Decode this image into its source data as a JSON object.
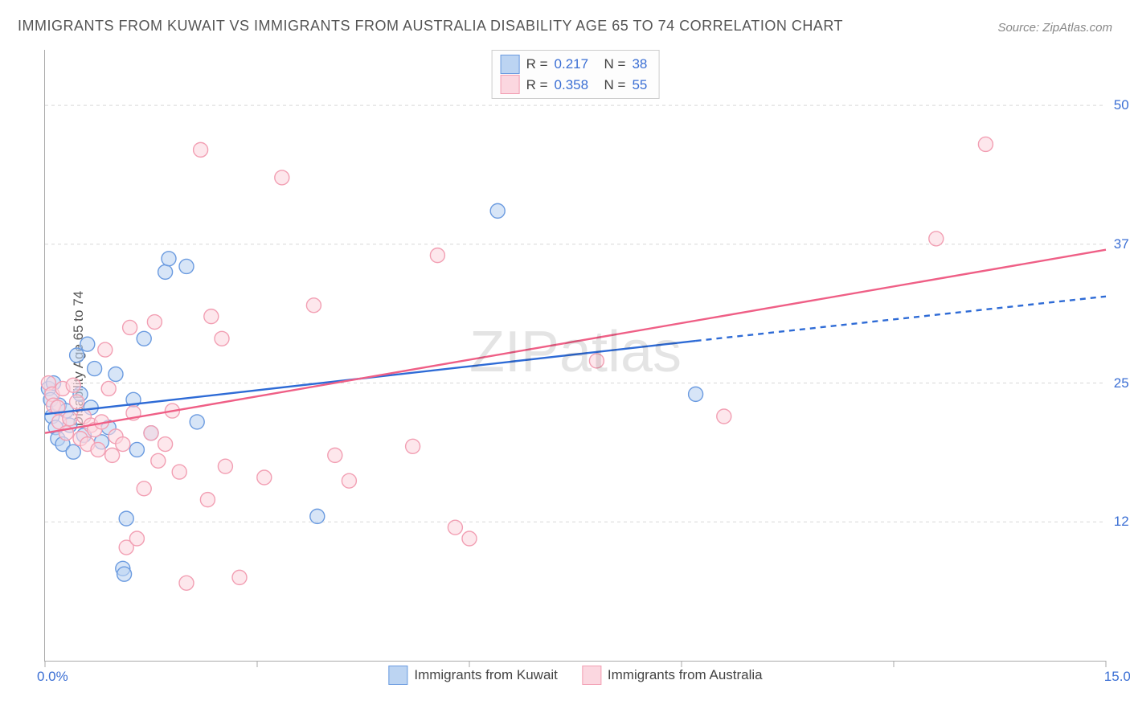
{
  "title": "IMMIGRANTS FROM KUWAIT VS IMMIGRANTS FROM AUSTRALIA DISABILITY AGE 65 TO 74 CORRELATION CHART",
  "source": "Source: ZipAtlas.com",
  "ylabel": "Disability Age 65 to 74",
  "watermark": "ZIPatlas",
  "chart": {
    "type": "scatter-correlation",
    "background_color": "#ffffff",
    "grid_color": "#d8d8d8",
    "axis_color": "#aaaaaa",
    "tick_color": "#aaaaaa",
    "tick_label_color": "#3b6fd4",
    "xlim": [
      0.0,
      15.0
    ],
    "ylim": [
      0.0,
      55.0
    ],
    "x_ticks": [
      0.0,
      3.0,
      6.0,
      9.0,
      12.0,
      15.0
    ],
    "x_tick_labels_shown": {
      "0": "0.0%",
      "15": "15.0%"
    },
    "y_gridlines": [
      12.5,
      25.0,
      37.5,
      50.0
    ],
    "y_tick_labels": [
      "12.5%",
      "25.0%",
      "37.5%",
      "50.0%"
    ],
    "marker_radius": 9,
    "marker_stroke_width": 1.4,
    "trend_line_width": 2.4,
    "series": [
      {
        "name": "Immigrants from Kuwait",
        "color_stroke": "#6b9be0",
        "color_fill": "#bcd4f2",
        "trend_color": "#2e6bd6",
        "r": "0.217",
        "n": "38",
        "trend": {
          "x0": 0.0,
          "y0": 22.2,
          "x1_solid": 9.2,
          "y1_solid": 28.8,
          "x1_dash": 15.0,
          "y1_dash": 32.8
        },
        "points": [
          [
            0.05,
            24.5
          ],
          [
            0.08,
            23.5
          ],
          [
            0.1,
            22.0
          ],
          [
            0.12,
            25.0
          ],
          [
            0.15,
            21.0
          ],
          [
            0.18,
            20.0
          ],
          [
            0.2,
            23.0
          ],
          [
            0.25,
            19.5
          ],
          [
            0.3,
            22.5
          ],
          [
            0.35,
            21.2
          ],
          [
            0.4,
            18.8
          ],
          [
            0.45,
            27.5
          ],
          [
            0.5,
            24.0
          ],
          [
            0.55,
            20.3
          ],
          [
            0.6,
            28.5
          ],
          [
            0.65,
            22.8
          ],
          [
            0.7,
            26.3
          ],
          [
            0.8,
            19.7
          ],
          [
            0.9,
            21.0
          ],
          [
            1.0,
            25.8
          ],
          [
            1.1,
            8.3
          ],
          [
            1.12,
            7.8
          ],
          [
            1.15,
            12.8
          ],
          [
            1.25,
            23.5
          ],
          [
            1.3,
            19.0
          ],
          [
            1.4,
            29.0
          ],
          [
            1.5,
            20.5
          ],
          [
            1.7,
            35.0
          ],
          [
            1.75,
            36.2
          ],
          [
            2.0,
            35.5
          ],
          [
            2.15,
            21.5
          ],
          [
            3.85,
            13.0
          ],
          [
            6.4,
            40.5
          ],
          [
            9.2,
            24.0
          ]
        ]
      },
      {
        "name": "Immigrants from Australia",
        "color_stroke": "#f29fb3",
        "color_fill": "#fbd7e0",
        "trend_color": "#ef5f86",
        "r": "0.358",
        "n": "55",
        "trend": {
          "x0": 0.0,
          "y0": 20.5,
          "x1_solid": 15.0,
          "y1_solid": 37.0
        },
        "points": [
          [
            0.05,
            25.0
          ],
          [
            0.1,
            24.0
          ],
          [
            0.12,
            23.0
          ],
          [
            0.18,
            22.8
          ],
          [
            0.2,
            21.5
          ],
          [
            0.25,
            24.5
          ],
          [
            0.3,
            20.5
          ],
          [
            0.35,
            21.8
          ],
          [
            0.4,
            24.8
          ],
          [
            0.45,
            23.3
          ],
          [
            0.5,
            20.0
          ],
          [
            0.55,
            22.0
          ],
          [
            0.6,
            19.5
          ],
          [
            0.65,
            21.2
          ],
          [
            0.7,
            20.8
          ],
          [
            0.75,
            19.0
          ],
          [
            0.8,
            21.5
          ],
          [
            0.85,
            28.0
          ],
          [
            0.9,
            24.5
          ],
          [
            0.95,
            18.5
          ],
          [
            1.0,
            20.2
          ],
          [
            1.1,
            19.5
          ],
          [
            1.15,
            10.2
          ],
          [
            1.2,
            30.0
          ],
          [
            1.25,
            22.3
          ],
          [
            1.3,
            11.0
          ],
          [
            1.4,
            15.5
          ],
          [
            1.5,
            20.5
          ],
          [
            1.55,
            30.5
          ],
          [
            1.6,
            18.0
          ],
          [
            1.7,
            19.5
          ],
          [
            1.8,
            22.5
          ],
          [
            1.9,
            17.0
          ],
          [
            2.0,
            7.0
          ],
          [
            2.2,
            46.0
          ],
          [
            2.3,
            14.5
          ],
          [
            2.35,
            31.0
          ],
          [
            2.5,
            29.0
          ],
          [
            2.55,
            17.5
          ],
          [
            2.75,
            7.5
          ],
          [
            3.1,
            16.5
          ],
          [
            3.35,
            43.5
          ],
          [
            3.8,
            32.0
          ],
          [
            4.1,
            18.5
          ],
          [
            4.3,
            16.2
          ],
          [
            5.2,
            19.3
          ],
          [
            5.55,
            36.5
          ],
          [
            5.8,
            12.0
          ],
          [
            6.0,
            11.0
          ],
          [
            7.8,
            27.0
          ],
          [
            9.6,
            22.0
          ],
          [
            12.6,
            38.0
          ],
          [
            13.3,
            46.5
          ]
        ]
      }
    ]
  },
  "legend_top": {
    "rows": [
      {
        "swatch_stroke": "#6b9be0",
        "swatch_fill": "#bcd4f2",
        "r_label": "R =",
        "r_val": "0.217",
        "n_label": "N =",
        "n_val": "38"
      },
      {
        "swatch_stroke": "#f29fb3",
        "swatch_fill": "#fbd7e0",
        "r_label": "R =",
        "r_val": "0.358",
        "n_label": "N =",
        "n_val": "55"
      }
    ]
  },
  "legend_bottom": {
    "items": [
      {
        "swatch_stroke": "#6b9be0",
        "swatch_fill": "#bcd4f2",
        "label": "Immigrants from Kuwait"
      },
      {
        "swatch_stroke": "#f29fb3",
        "swatch_fill": "#fbd7e0",
        "label": "Immigrants from Australia"
      }
    ]
  }
}
